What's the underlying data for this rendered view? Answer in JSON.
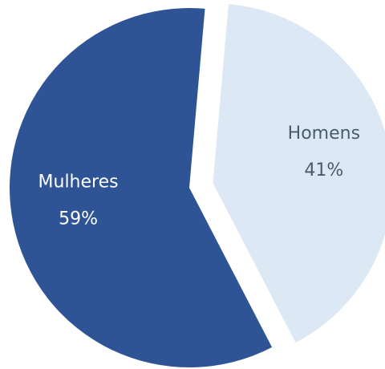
{
  "chart_data": {
    "type": "pie",
    "categories": [
      "Mulheres",
      "Homens"
    ],
    "values": [
      59,
      41
    ],
    "value_labels": [
      "59%",
      "41%"
    ],
    "colors": [
      "#2f5496",
      "#dde8f5"
    ],
    "label_colors": [
      "#ffffff",
      "#4a5b6a"
    ],
    "explode": [
      false,
      true
    ]
  }
}
